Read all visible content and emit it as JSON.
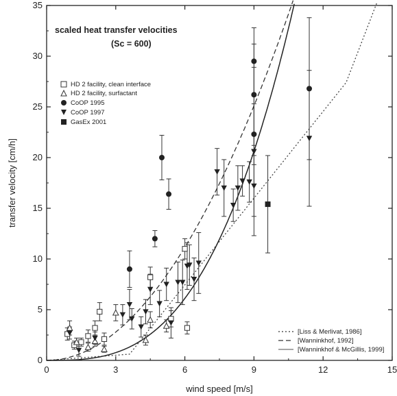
{
  "chart_data": {
    "type": "scatter",
    "title": "",
    "xlabel": "wind speed [m/s]",
    "ylabel": "transfer velocity [cm/h]",
    "xlim": [
      0,
      15
    ],
    "ylim": [
      0,
      35
    ],
    "x_ticks": [
      0,
      3,
      6,
      9,
      12,
      15
    ],
    "y_ticks": [
      0,
      5,
      10,
      15,
      20,
      25,
      30,
      35
    ],
    "grid": false,
    "annotation": {
      "line1": "scaled heat transfer velocities",
      "line2": "(Sc = 600)"
    },
    "legend_markers_position": "upper-left",
    "legend_lines_position": "bottom-right",
    "series": [
      {
        "name": "HD 2 facility, clean interface",
        "marker": "open-square",
        "points": [
          [
            0.9,
            2.6,
            0.6
          ],
          [
            1.2,
            1.5,
            0.4
          ],
          [
            1.5,
            1.8,
            0.4
          ],
          [
            1.8,
            2.4,
            0.6
          ],
          [
            2.1,
            3.2,
            0.7
          ],
          [
            2.3,
            4.8,
            0.9
          ],
          [
            2.5,
            2.1,
            0.6
          ],
          [
            4.5,
            8.2,
            1.0
          ],
          [
            5.4,
            4.1,
            0.8
          ],
          [
            6.0,
            11.0,
            1.0
          ],
          [
            6.1,
            3.2,
            0.6
          ]
        ]
      },
      {
        "name": "HD 2 facility, surfactant",
        "marker": "open-triangle",
        "points": [
          [
            1.0,
            3.2,
            0.7
          ],
          [
            1.3,
            1.8,
            0.4
          ],
          [
            1.8,
            1.3,
            0.4
          ],
          [
            2.1,
            1.9,
            0.5
          ],
          [
            2.5,
            1.1,
            0.3
          ],
          [
            3.0,
            4.7,
            0.8
          ],
          [
            4.3,
            2.0,
            0.5
          ],
          [
            4.5,
            4.0,
            0.8
          ],
          [
            5.2,
            3.4,
            0.6
          ]
        ]
      },
      {
        "name": "CoOP 1995",
        "marker": "filled-circle",
        "points": [
          [
            3.6,
            9.0,
            1.8
          ],
          [
            4.7,
            12.0,
            0.8
          ],
          [
            5.0,
            20.0,
            2.2
          ],
          [
            5.3,
            16.4,
            1.5
          ],
          [
            9.0,
            22.3,
            3.0
          ],
          [
            9.0,
            26.2,
            5.0
          ],
          [
            9.0,
            29.5,
            3.3
          ],
          [
            11.4,
            26.8,
            7.0
          ]
        ]
      },
      {
        "name": "CoOP 1997",
        "marker": "filled-down-triangle",
        "points": [
          [
            1.0,
            2.7,
            0.6
          ],
          [
            1.4,
            1.0,
            0.6
          ],
          [
            2.1,
            2.2,
            0.6
          ],
          [
            3.3,
            4.5,
            1.0
          ],
          [
            3.7,
            4.1,
            1.0
          ],
          [
            3.6,
            5.5,
            1.5
          ],
          [
            4.1,
            3.3,
            1.0
          ],
          [
            4.3,
            4.8,
            1.2
          ],
          [
            4.5,
            7.0,
            1.5
          ],
          [
            4.9,
            5.6,
            1.3
          ],
          [
            5.2,
            7.5,
            1.6
          ],
          [
            5.4,
            3.7,
            1.5
          ],
          [
            5.7,
            7.7,
            2.0
          ],
          [
            5.9,
            7.7,
            2.2
          ],
          [
            6.1,
            9.3,
            2.3
          ],
          [
            6.2,
            9.4,
            2.0
          ],
          [
            6.4,
            8.0,
            2.1
          ],
          [
            6.6,
            9.6,
            3.0
          ],
          [
            7.4,
            18.6,
            2.3
          ],
          [
            7.7,
            17.0,
            2.8
          ],
          [
            8.1,
            15.3,
            1.6
          ],
          [
            8.3,
            17.0,
            2.2
          ],
          [
            8.5,
            17.7,
            1.5
          ],
          [
            8.8,
            17.6,
            2.0
          ],
          [
            9.0,
            17.2,
            3.0
          ],
          [
            9.0,
            20.6,
            8.3
          ],
          [
            11.4,
            21.9,
            6.7
          ]
        ]
      },
      {
        "name": "GasEx 2001",
        "marker": "filled-square",
        "points": [
          [
            9.6,
            15.4,
            4.8
          ]
        ]
      }
    ],
    "curves": [
      {
        "name": "[Liss & Merlivat, 1986]",
        "style": "dotted"
      },
      {
        "name": "[Wanninkhof, 1992]",
        "style": "dashed"
      },
      {
        "name": "[Wanninkhof & McGillis, 1999]",
        "style": "solid"
      }
    ]
  }
}
